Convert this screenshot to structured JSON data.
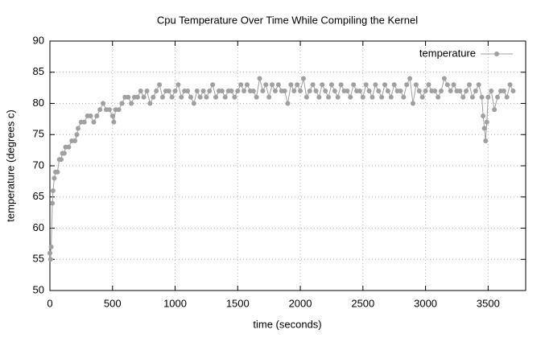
{
  "chart_data": {
    "type": "line",
    "title": "Cpu Temperature Over Time While Compiling the Kernel",
    "x_label": "time (seconds)",
    "y_label": "temperature (degrees c)",
    "xlim": [
      0,
      3800
    ],
    "xticks": [
      0,
      500,
      1000,
      1500,
      2000,
      2500,
      3000,
      3500
    ],
    "ylim": [
      50,
      90
    ],
    "yticks": [
      50,
      55,
      60,
      65,
      70,
      75,
      80,
      85,
      90
    ],
    "grid": true,
    "legend": "top-right",
    "series": [
      {
        "name": "temperature",
        "color": "#a0a0a0",
        "x": [
          0,
          5,
          10,
          20,
          25,
          35,
          45,
          60,
          75,
          90,
          100,
          115,
          125,
          150,
          175,
          200,
          215,
          225,
          250,
          275,
          300,
          325,
          350,
          375,
          400,
          425,
          450,
          475,
          500,
          510,
          525,
          550,
          575,
          600,
          625,
          650,
          675,
          700,
          725,
          750,
          775,
          800,
          825,
          850,
          875,
          900,
          925,
          950,
          975,
          1000,
          1025,
          1050,
          1075,
          1100,
          1125,
          1150,
          1175,
          1200,
          1225,
          1250,
          1275,
          1300,
          1325,
          1350,
          1375,
          1400,
          1425,
          1450,
          1475,
          1500,
          1525,
          1550,
          1575,
          1600,
          1625,
          1650,
          1675,
          1700,
          1725,
          1750,
          1775,
          1800,
          1825,
          1850,
          1875,
          1900,
          1925,
          1950,
          1975,
          2000,
          2025,
          2050,
          2075,
          2100,
          2125,
          2150,
          2175,
          2200,
          2225,
          2250,
          2275,
          2300,
          2325,
          2350,
          2375,
          2400,
          2425,
          2450,
          2475,
          2500,
          2525,
          2550,
          2575,
          2600,
          2625,
          2650,
          2675,
          2700,
          2725,
          2750,
          2775,
          2800,
          2825,
          2850,
          2875,
          2900,
          2925,
          2950,
          2975,
          3000,
          3025,
          3050,
          3075,
          3100,
          3125,
          3150,
          3175,
          3200,
          3225,
          3250,
          3275,
          3300,
          3325,
          3350,
          3375,
          3400,
          3425,
          3450,
          3460,
          3470,
          3480,
          3490,
          3500,
          3525,
          3550,
          3575,
          3600,
          3625,
          3650,
          3675,
          3700
        ],
        "values": [
          56,
          55,
          57,
          64,
          66,
          68,
          69,
          69,
          71,
          71,
          72,
          72,
          73,
          73,
          74,
          74,
          75,
          76,
          77,
          77,
          78,
          78,
          77,
          78,
          79,
          80,
          79,
          79,
          78,
          77,
          79,
          79,
          80,
          81,
          81,
          80,
          81,
          81,
          82,
          81,
          82,
          80,
          81,
          82,
          83,
          81,
          82,
          82,
          81,
          82,
          83,
          81,
          82,
          82,
          81,
          80,
          82,
          81,
          82,
          81,
          82,
          83,
          81,
          82,
          82,
          81,
          82,
          82,
          81,
          82,
          83,
          82,
          83,
          82,
          82,
          81,
          84,
          82,
          83,
          81,
          83,
          82,
          83,
          82,
          82,
          80,
          83,
          82,
          83,
          82,
          84,
          81,
          82,
          83,
          82,
          81,
          83,
          82,
          81,
          83,
          82,
          81,
          83,
          82,
          82,
          81,
          83,
          82,
          82,
          81,
          83,
          82,
          81,
          83,
          82,
          81,
          83,
          82,
          81,
          83,
          82,
          82,
          81,
          83,
          84,
          80,
          83,
          82,
          81,
          82,
          83,
          82,
          82,
          81,
          82,
          84,
          83,
          82,
          83,
          82,
          82,
          81,
          82,
          83,
          81,
          82,
          83,
          81,
          78,
          76,
          74,
          77,
          81,
          82,
          79,
          81,
          82,
          82,
          81,
          83,
          82
        ]
      }
    ]
  }
}
